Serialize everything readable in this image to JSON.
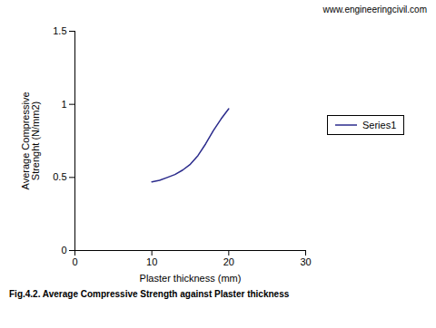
{
  "chart_data": {
    "type": "line",
    "x": [
      10,
      11,
      12,
      13,
      14,
      15,
      16,
      17,
      18,
      19,
      20
    ],
    "series": [
      {
        "name": "Series1",
        "color": "#2b2b8c",
        "values": [
          0.47,
          0.48,
          0.5,
          0.52,
          0.55,
          0.59,
          0.65,
          0.73,
          0.82,
          0.9,
          0.97
        ]
      }
    ],
    "xlim": [
      0,
      30
    ],
    "ylim": [
      0,
      1.5
    ],
    "xticks": [
      0,
      10,
      20,
      30
    ],
    "yticks": [
      0,
      0.5,
      1,
      1.5
    ],
    "xlabel": "Plaster thickness (mm)",
    "ylabel": "Average Compressive\nStrenght (N/mm2)",
    "legend": "right",
    "annotations": [
      "www.engineeringcivil.com"
    ],
    "caption": "Fig.4.2. Average Compressive Strength against Plaster thickness"
  }
}
